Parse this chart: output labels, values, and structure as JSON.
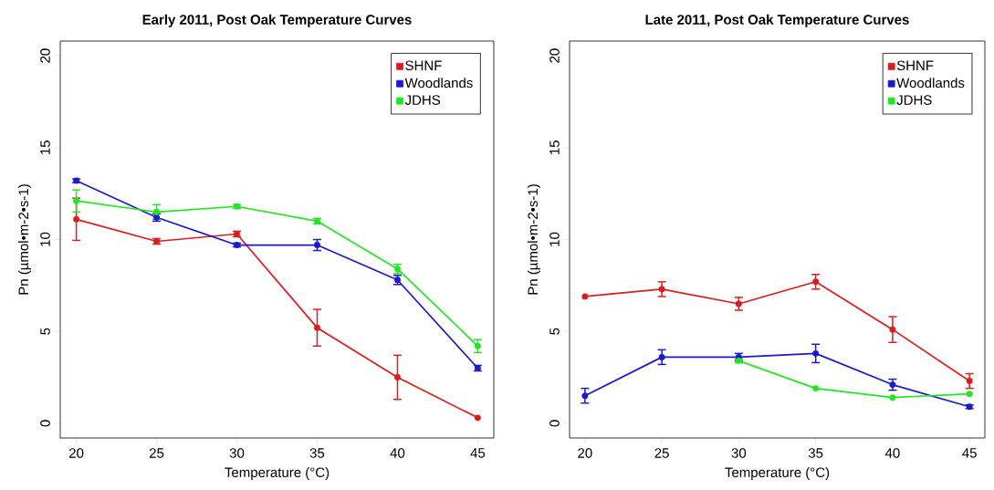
{
  "chart_data": [
    {
      "type": "line",
      "title": "Early 2011, Post Oak Temperature Curves",
      "xlabel": "Temperature (°C)",
      "ylabel": "Pn (µmol•m-2•s-1)",
      "x": [
        20,
        25,
        30,
        35,
        40,
        45
      ],
      "xlim": [
        19,
        46
      ],
      "ylim": [
        -0.8,
        20.8
      ],
      "xticks": [
        20,
        25,
        30,
        35,
        40,
        45
      ],
      "yticks": [
        0,
        5,
        10,
        15,
        20
      ],
      "marker": "circle",
      "line_style": "solid",
      "legend": "top right",
      "series": [
        {
          "name": "SHNF",
          "color": "#dd1c1c",
          "values": [
            11.1,
            9.9,
            10.3,
            5.2,
            2.5,
            0.3
          ],
          "errors": [
            1.15,
            0.15,
            0.15,
            1.0,
            1.2,
            null
          ]
        },
        {
          "name": "Woodlands",
          "color": "#1a1acd",
          "values": [
            13.2,
            11.2,
            9.7,
            9.7,
            7.8,
            3.0
          ],
          "errors": [
            0.1,
            0.2,
            0.1,
            0.3,
            0.25,
            0.15
          ]
        },
        {
          "name": "JDHS",
          "color": "#22e622",
          "values": [
            12.1,
            11.5,
            11.8,
            11.0,
            8.4,
            4.2
          ],
          "errors": [
            0.6,
            0.4,
            0.1,
            0.15,
            0.25,
            0.35
          ]
        }
      ]
    },
    {
      "type": "line",
      "title": "Late 2011, Post Oak Temperature Curves",
      "xlabel": "Temperature (°C)",
      "ylabel": "Pn (µmol•m-2•s-1)",
      "x": [
        20,
        25,
        30,
        35,
        40,
        45
      ],
      "xlim": [
        19,
        46
      ],
      "ylim": [
        -0.8,
        20.8
      ],
      "xticks": [
        20,
        25,
        30,
        35,
        40,
        45
      ],
      "yticks": [
        0,
        5,
        10,
        15,
        20
      ],
      "marker": "circle",
      "line_style": "solid",
      "legend": "top right",
      "series": [
        {
          "name": "SHNF",
          "color": "#dd1c1c",
          "values": [
            6.9,
            7.3,
            6.5,
            7.7,
            5.1,
            2.3
          ],
          "errors": [
            null,
            0.4,
            0.35,
            0.4,
            0.7,
            0.4
          ]
        },
        {
          "name": "Woodlands",
          "color": "#1a1acd",
          "values": [
            1.5,
            3.6,
            3.6,
            3.8,
            2.1,
            0.9
          ],
          "errors": [
            0.4,
            0.4,
            0.2,
            0.5,
            0.3,
            0.1
          ]
        },
        {
          "name": "JDHS",
          "color": "#22e622",
          "values": [
            null,
            null,
            3.4,
            1.9,
            1.4,
            1.6
          ],
          "errors": [
            null,
            null,
            0.1,
            null,
            null,
            null
          ]
        }
      ]
    }
  ]
}
